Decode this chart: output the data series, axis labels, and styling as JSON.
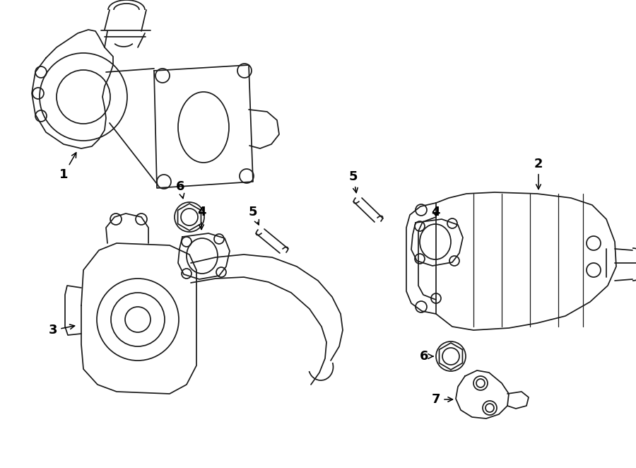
{
  "bg_color": "#ffffff",
  "line_color": "#1a1a1a",
  "fig_width": 9.0,
  "fig_height": 6.62,
  "dpi": 100,
  "lw": 1.25
}
